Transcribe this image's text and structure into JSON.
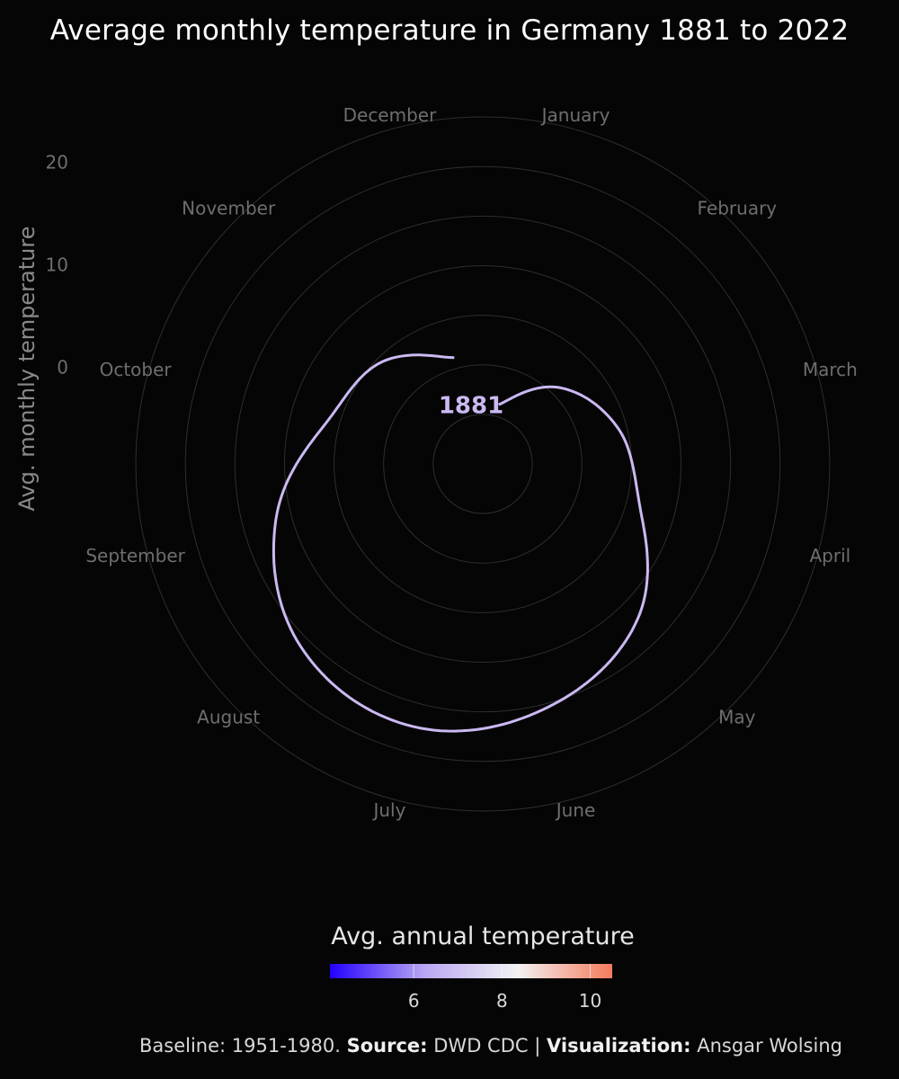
{
  "chart_data": {
    "type": "line",
    "coordinate_system": "polar",
    "title": "Average monthly temperature in Germany 1881 to 2022",
    "ylabel": "Avg. monthly temperature",
    "angular_axis": {
      "categories": [
        "January",
        "February",
        "March",
        "April",
        "May",
        "June",
        "July",
        "August",
        "September",
        "October",
        "November",
        "December"
      ]
    },
    "radial_axis": {
      "ticks": [
        0,
        10,
        20
      ],
      "range": [
        -10,
        27
      ]
    },
    "series": [
      {
        "name": "1881",
        "month_values": [
          {
            "month": "January",
            "value": -3.8
          },
          {
            "month": "February",
            "value": 0.9
          },
          {
            "month": "March",
            "value": 4.1
          },
          {
            "month": "April",
            "value": 6.4
          },
          {
            "month": "May",
            "value": 12.1
          },
          {
            "month": "June",
            "value": 15.4
          },
          {
            "month": "July",
            "value": 17.4
          },
          {
            "month": "August",
            "value": 16.0
          },
          {
            "month": "September",
            "value": 11.6
          },
          {
            "month": "October",
            "value": 6.3
          },
          {
            "month": "November",
            "value": 4.5
          },
          {
            "month": "December",
            "value": 1.1
          }
        ],
        "color": "#cbb9f2"
      }
    ],
    "legend": {
      "title": "Avg. annual temperature",
      "type": "color-gradient",
      "range": [
        4.1,
        10.5
      ],
      "ticks": [
        6,
        8,
        10
      ],
      "colors": [
        "#2200ff",
        "#b9a6f3",
        "#f2f2f2",
        "#f57a5c"
      ],
      "placement": "bottom"
    },
    "grid": true
  },
  "caption": {
    "baseline": "Baseline: 1951-1980.",
    "source_label": "Source:",
    "source_value": "DWD CDC",
    "separator": "|",
    "viz_label": "Visualization:",
    "viz_value": "Ansgar Wolsing"
  },
  "colors": {
    "background": "#050505",
    "grid": "#2e2e2e",
    "axis_text": "#6e6e6e"
  }
}
